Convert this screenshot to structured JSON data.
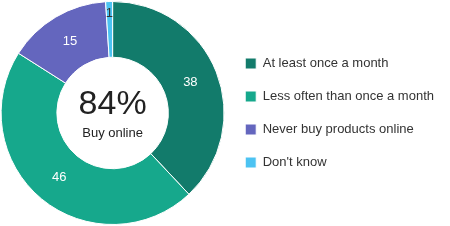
{
  "chart_data": {
    "type": "doughnut",
    "categories": [
      "At least once a month",
      "Less often than once a month",
      "Never buy products online",
      "Don't know"
    ],
    "values": [
      38,
      46,
      15,
      1
    ],
    "colors": [
      "#127b6b",
      "#16a88c",
      "#6466be",
      "#4cc3f2"
    ],
    "data_labels": true,
    "legend": "right",
    "annotations": [
      "84%",
      "Buy online"
    ]
  }
}
